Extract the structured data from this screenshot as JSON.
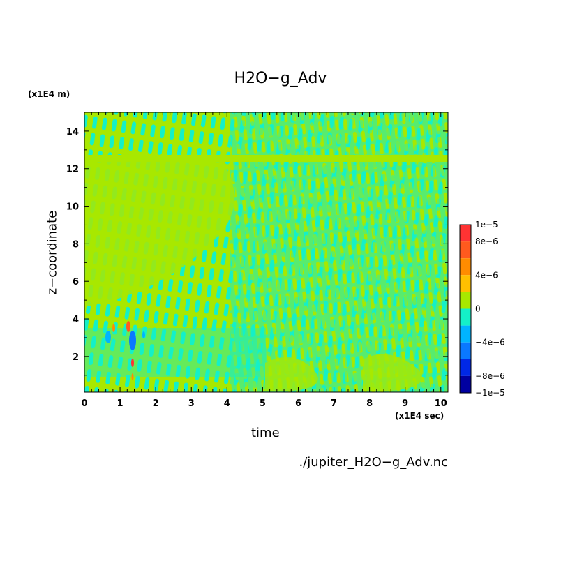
{
  "chart_data": {
    "type": "heatmap",
    "title": "H2O−g_Adv",
    "xlabel": "time",
    "ylabel": "z−coordinate",
    "x_unit": "(x1E4 sec)",
    "y_unit": "(x1E4 m)",
    "xlim": [
      0,
      10.2
    ],
    "ylim": [
      0.1,
      15
    ],
    "x_ticks": [
      "0",
      "1",
      "2",
      "3",
      "4",
      "5",
      "6",
      "7",
      "8",
      "9",
      "10"
    ],
    "y_ticks": [
      "2",
      "4",
      "6",
      "8",
      "10",
      "12",
      "14"
    ],
    "colorbar": {
      "labels": [
        "1e−5",
        "8e−6",
        "4e−6",
        "0",
        "−4e−6",
        "−8e−6",
        "−1e−5"
      ],
      "colors": [
        "#ff3333",
        "#ff5a1e",
        "#ff8c00",
        "#ffc000",
        "#a8e800",
        "#14f0c8",
        "#00b4ff",
        "#0a78ff",
        "#0028e6",
        "#0000a0"
      ]
    },
    "dominant_levels": {
      "zero_band_color": "#a8e800",
      "slight_negative_color": "#14f0c8"
    }
  },
  "footer": {
    "source_file": "./jupiter_H2O−g_Adv.nc"
  }
}
